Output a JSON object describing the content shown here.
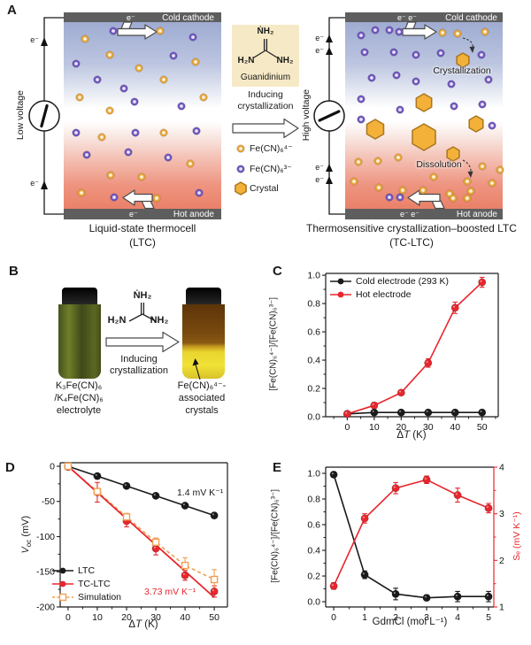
{
  "panelA": {
    "label": "A",
    "ltc": {
      "voltage": "Low voltage",
      "wire_e": "e⁻",
      "bar_e": "e⁻",
      "top_electrode": "Cold cathode",
      "bottom_electrode": "Hot anode",
      "caption1": "Liquid-state thermocell",
      "caption2": "(LTC)"
    },
    "middle": {
      "mol_top": "ṄH₂",
      "mol_left": "H₂N",
      "mol_right": "NH₂",
      "mol_name": "Guanidinium",
      "inducing1": "Inducing",
      "inducing2": "crystallization",
      "legend": [
        {
          "icon": "orange-dot",
          "label": "Fe(CN)₆⁴⁻"
        },
        {
          "icon": "purple-dot",
          "label": "Fe(CN)₆³⁻"
        },
        {
          "icon": "crystal-hexagon",
          "label": "Crystal"
        }
      ]
    },
    "tc": {
      "voltage": "High voltage",
      "wire_e": "e⁻",
      "bar_e": "e⁻ e⁻",
      "top_electrode": "Cold cathode",
      "bottom_electrode": "Hot anode",
      "crystallization": "Crystallization",
      "dissolution": "Dissolution",
      "caption1": "Thermosensitive crystallization–boosted LTC",
      "caption2": "(TC-LTC)"
    },
    "colors": {
      "ferrocyanide_dot": "#e5a53c",
      "ferricyanide_dot": "#6f57bd",
      "crystal": "#f3b13a",
      "electrode": "#5e5e5e",
      "cold_side": "#a9b5d7",
      "hot_side": "#ea8068"
    }
  },
  "panelB": {
    "label": "B",
    "left_caption": [
      "K₃Fe(CN)₆",
      "/K₄Fe(CN)₆",
      "electrolyte"
    ],
    "mol_top": "ṄH₂",
    "mol_left": "H₂N",
    "mol_right": "NH₂",
    "inducing1": "Inducing",
    "inducing2": "crystallization",
    "right_caption": [
      "Fe(CN)₆⁴⁻-",
      "associated",
      "crystals"
    ]
  },
  "panelC": {
    "label": "C"
  },
  "panelD": {
    "label": "D"
  },
  "panelE": {
    "label": "E"
  },
  "chart_data": [
    {
      "id": "C",
      "type": "line",
      "xlabel": "ΔT (K)",
      "xlabel_parts": [
        "Δ",
        "T",
        " (K)"
      ],
      "ylabel": "[Fe(CN)₆⁴⁻]/[Fe(CN)₆³⁻]",
      "x": [
        0,
        10,
        20,
        30,
        40,
        50
      ],
      "xlim": [
        -8,
        56
      ],
      "ylim": [
        0,
        1.013
      ],
      "xticks": {
        "vals": [
          0,
          10,
          20,
          30,
          40,
          50
        ],
        "labels": [
          "0",
          "10",
          "20",
          "30",
          "40",
          "50"
        ]
      },
      "yticks": {
        "vals": [
          0,
          0.2,
          0.4,
          0.6,
          0.8,
          1.0
        ],
        "labels": [
          "0.0",
          "0.2",
          "0.4",
          "0.6",
          "0.8",
          "1.0"
        ]
      },
      "legend_pos": "top-left",
      "series": [
        {
          "name": "Cold electrode (293 K)",
          "color": "#1a1a1a",
          "marker": "circle",
          "line": "solid",
          "y": [
            0.02,
            0.03,
            0.03,
            0.03,
            0.03,
            0.03
          ],
          "err": [
            0.012,
            0.012,
            0.012,
            0.012,
            0.012,
            0.012
          ]
        },
        {
          "name": "Hot electrode",
          "color": "#e8262d",
          "marker": "circle",
          "line": "solid",
          "y": [
            0.02,
            0.08,
            0.17,
            0.38,
            0.77,
            0.95
          ],
          "err": [
            0.012,
            0.02,
            0.015,
            0.03,
            0.04,
            0.035
          ]
        }
      ]
    },
    {
      "id": "D",
      "type": "line",
      "xlabel": "ΔT (K)",
      "xlabel_parts": [
        "Δ",
        "T",
        " (K)"
      ],
      "ylabel": "V_oc (mV)",
      "ylabel_v": "V",
      "ylabel_sub": "oc",
      "ylabel_unit": " (mV)",
      "x": [
        0,
        10,
        20,
        30,
        40,
        50
      ],
      "xlim": [
        -2.7,
        54.5
      ],
      "ylim": [
        -200,
        5
      ],
      "xticks": {
        "vals": [
          0,
          10,
          20,
          30,
          40,
          50
        ],
        "labels": [
          "0",
          "10",
          "20",
          "30",
          "40",
          "50"
        ]
      },
      "yticks": {
        "vals": [
          0,
          -50,
          -100,
          -150,
          -200
        ],
        "labels": [
          "0",
          "-50",
          "-100",
          "-150",
          "-200"
        ]
      },
      "legend_pos": "bottom-left",
      "series": [
        {
          "name": "LTC",
          "color": "#1a1a1a",
          "marker": "circle",
          "line": "solid",
          "y": [
            0,
            -14,
            -28,
            -42,
            -56,
            -70
          ]
        },
        {
          "name": "TC-LTC",
          "color": "#e8262d",
          "marker": "circle",
          "line": "none",
          "y": [
            -1,
            -37,
            -78,
            -117,
            -155,
            -178
          ],
          "err": [
            2,
            14,
            8,
            9,
            7,
            8
          ]
        },
        {
          "name": "Simulation",
          "color": "#f09f4e",
          "marker": "square-open",
          "line": "dashed",
          "y": [
            0,
            -36,
            -72,
            -108,
            -141,
            -161
          ],
          "err": [
            1,
            4,
            5,
            6,
            11,
            14
          ]
        }
      ],
      "fit_line": {
        "color": "#e8262d",
        "x": [
          0,
          50
        ],
        "y": [
          0,
          -186.5
        ]
      },
      "annotations": [
        {
          "text": "1.4 mV K⁻¹",
          "color": "#1a1a1a"
        },
        {
          "text": "3.73 mV K⁻¹",
          "color": "#e8262d"
        }
      ]
    },
    {
      "id": "E",
      "type": "line",
      "xlabel": "GdmCl (mol L⁻¹)",
      "ylabel_left": "[Fe(CN)₆⁴⁻]/[Fe(CN)₆³⁻]",
      "ylabel_right": "Sₑ (mV K⁻¹)",
      "right_color": "#e8262d",
      "x": [
        0,
        1,
        2,
        3,
        4,
        5
      ],
      "xlim": [
        -0.26,
        5.17
      ],
      "ylim": [
        -0.041,
        1.048
      ],
      "rlim": [
        1,
        4
      ],
      "xticks": {
        "vals": [
          0,
          1,
          2,
          3,
          4,
          5
        ],
        "labels": [
          "0",
          "1",
          "2",
          "3",
          "4",
          "5"
        ]
      },
      "yticks": {
        "vals": [
          0,
          0.2,
          0.4,
          0.6,
          0.8,
          1.0
        ],
        "labels": [
          "0.0",
          "0.2",
          "0.4",
          "0.6",
          "0.8",
          "1.0"
        ]
      },
      "rticks": {
        "vals": [
          1,
          2,
          3,
          4
        ],
        "labels": [
          "1",
          "2",
          "3",
          "4"
        ]
      },
      "series": [
        {
          "name": "[Fe(CN)₆⁴⁻]/[Fe(CN)₆³⁻]",
          "axis": "left",
          "color": "#1a1a1a",
          "marker": "circle",
          "line": "solid",
          "y": [
            0.99,
            0.21,
            0.06,
            0.03,
            0.04,
            0.04
          ],
          "err": [
            0.02,
            0.03,
            0.045,
            0.02,
            0.04,
            0.04
          ]
        },
        {
          "name": "Sₑ",
          "axis": "right",
          "color": "#e8262d",
          "marker": "circle",
          "line": "solid",
          "y": [
            1.45,
            2.9,
            3.55,
            3.73,
            3.4,
            3.12
          ],
          "err": [
            0.07,
            0.1,
            0.12,
            0.08,
            0.15,
            0.1
          ]
        }
      ]
    }
  ]
}
